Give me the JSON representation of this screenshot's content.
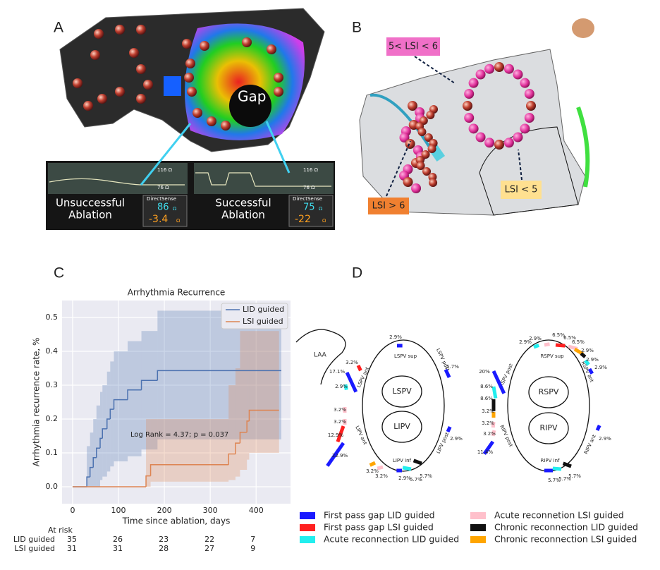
{
  "panel_labels": [
    "A",
    "B",
    "C",
    "D"
  ],
  "panel_a": {
    "gap": "Gap",
    "scale_top": "116 Ω",
    "scale_bottom": "76 Ω",
    "cases": [
      {
        "lines": [
          "Unsuccessful",
          "Ablation"
        ],
        "box_title": "DirectSense",
        "impedance": "86",
        "drop": "-3.4",
        "unit": "Ω"
      },
      {
        "lines": [
          "Successful",
          "Ablation"
        ],
        "box_title": "DirectSense",
        "impedance": "75",
        "drop": "-22",
        "unit": "Ω"
      }
    ]
  },
  "panel_b": {
    "mid": "5< LSI < 6",
    "high": "LSI > 6",
    "low": "LSI < 5"
  },
  "chart_data": {
    "type": "step",
    "title": "Arrhythmia Recurrence",
    "xlabel": "Time since ablation, days",
    "ylabel": "Arrhythmia recurrence rate, %",
    "annotation": "Log Rank = 4.37; p = 0.037",
    "xlim": [
      -23,
      475
    ],
    "ylim": [
      -0.05,
      0.55
    ],
    "xticks": [
      0,
      100,
      200,
      300,
      400
    ],
    "yticks": [
      {
        "value": 0,
        "label": "0.0"
      },
      0.1,
      0.2,
      0.3,
      0.4,
      0.5
    ],
    "grid": true,
    "legend": "upper right",
    "series": [
      {
        "name": "LID guided",
        "color": "#4c72b0",
        "x": [
          0,
          31,
          38,
          45,
          52,
          60,
          65,
          75,
          82,
          90,
          120,
          150,
          185,
          455
        ],
        "values": [
          0,
          0.029,
          0.057,
          0.086,
          0.114,
          0.143,
          0.171,
          0.2,
          0.229,
          0.257,
          0.286,
          0.314,
          0.343,
          0.343
        ],
        "upper": [
          0,
          0.12,
          0.16,
          0.2,
          0.24,
          0.28,
          0.3,
          0.34,
          0.37,
          0.4,
          0.43,
          0.46,
          0.52,
          0.52
        ],
        "lower": [
          0,
          0,
          0,
          0,
          0,
          0.02,
          0.03,
          0.045,
          0.06,
          0.075,
          0.09,
          0.11,
          0.14,
          0.14
        ]
      },
      {
        "name": "LSI guided",
        "color": "#dd8452",
        "x": [
          0,
          160,
          170,
          340,
          355,
          365,
          380,
          385,
          450
        ],
        "values": [
          0,
          0.032,
          0.065,
          0.097,
          0.129,
          0.161,
          0.194,
          0.226,
          0.226
        ],
        "upper": [
          0,
          0.2,
          0.2,
          0.3,
          0.35,
          0.46,
          0.46,
          0.46,
          0.46
        ],
        "lower": [
          0,
          0,
          0.015,
          0.02,
          0.03,
          0.05,
          0.08,
          0.1,
          0.1
        ]
      }
    ]
  },
  "at_risk": {
    "title": "At risk",
    "rows": [
      {
        "name": "LID guided",
        "values": [
          35,
          26,
          23,
          22,
          7
        ]
      },
      {
        "name": "LSI guided",
        "values": [
          31,
          31,
          28,
          27,
          9
        ]
      }
    ]
  },
  "panel_d": {
    "laa": "LAA",
    "veins": [
      "LSPV",
      "LIPV",
      "RSPV",
      "RIPV"
    ],
    "segments": [
      "LSPV sup",
      "LSPV post",
      "LIPV post",
      "LIPV inf",
      "LIPV ant",
      "LSPV ant",
      "RSPV sup",
      "RSPV ant",
      "RIPV ant",
      "RIPV inf",
      "RIPV post",
      "RSPV post"
    ],
    "bars": [
      {
        "value": 2.9,
        "label": "2.9%",
        "color": "#1a1aff"
      },
      {
        "value": 5.7,
        "label": "5.7%",
        "color": "#1a1aff"
      },
      {
        "value": 2.9,
        "label": "2.9%",
        "color": "#1a1aff"
      },
      {
        "value": 3.2,
        "label": "3.2%",
        "color": "#ff2020"
      },
      {
        "value": 17.1,
        "label": "17.1%",
        "color": "#1a1aff"
      },
      {
        "value": 2.9,
        "label": "2.9%",
        "color": "#22eeee"
      },
      {
        "value": 3.2,
        "label": "3.2%",
        "color": "#ffc0cb"
      },
      {
        "value": 3.2,
        "label": "3.2%",
        "color": "#ffc0cb"
      },
      {
        "value": 12.9,
        "label": "12.9%",
        "color": "#ff2020"
      },
      {
        "value": 22.9,
        "label": "22.9%",
        "color": "#1a1aff"
      },
      {
        "value": 3.2,
        "label": "3.2%",
        "color": "#ffa500"
      },
      {
        "value": 3.2,
        "label": "3.2%",
        "color": "#ffc0cb"
      },
      {
        "value": 2.9,
        "label": "2.9%",
        "color": "#1a1aff"
      },
      {
        "value": 5.7,
        "label": "5.7%",
        "color": "#22eeee"
      },
      {
        "value": 5.7,
        "label": "5.7%",
        "color": "#111111"
      },
      {
        "value": 2.9,
        "label": "2.9%",
        "color": "#22eeee"
      },
      {
        "value": 2.9,
        "label": "2.9%",
        "color": "#ffc0cb"
      },
      {
        "value": 6.5,
        "label": "6.5%",
        "color": "#ff2020"
      },
      {
        "value": 6.5,
        "label": "6.5%",
        "color": "#ffc0cb"
      },
      {
        "value": 6.5,
        "label": "6.5%",
        "color": "#ffa500"
      },
      {
        "value": 2.9,
        "label": "2.9%",
        "color": "#111111"
      },
      {
        "value": 2.9,
        "label": "2.9%",
        "color": "#22eeee"
      },
      {
        "value": 2.9,
        "label": "2.9%",
        "color": "#1a1aff"
      },
      {
        "value": 20,
        "label": "20%",
        "color": "#1a1aff"
      },
      {
        "value": 8.6,
        "label": "8.6%",
        "color": "#22eeee"
      },
      {
        "value": 8.6,
        "label": "8.6%",
        "color": "#111111"
      },
      {
        "value": 3.2,
        "label": "3.2%",
        "color": "#ffa500"
      },
      {
        "value": 3.2,
        "label": "3.2%",
        "color": "#ffc0cb"
      },
      {
        "value": 3.2,
        "label": "3.2%",
        "color": "#ffc0cb"
      },
      {
        "value": 11.4,
        "label": "11.4%",
        "color": "#1a1aff"
      },
      {
        "value": 2.9,
        "label": "2.9%",
        "color": "#1a1aff"
      },
      {
        "value": 5.7,
        "label": "5.7%",
        "color": "#1a1aff"
      },
      {
        "value": 5.7,
        "label": "5.7%",
        "color": "#22eeee"
      },
      {
        "value": 5.7,
        "label": "5.7%",
        "color": "#111111"
      }
    ],
    "legend": [
      {
        "name": "First pass gap LID guided",
        "color": "#1a1aff"
      },
      {
        "name": "First pass gap LSI guided",
        "color": "#ff2020"
      },
      {
        "name": "Acute reconnection LID guided",
        "color": "#22eeee"
      },
      {
        "name": "Acute reconnetion LSI guided",
        "color": "#ffc0cb"
      },
      {
        "name": "Chronic reconnection LID guided",
        "color": "#111111"
      },
      {
        "name": "Chronic reconnection LSI guided",
        "color": "#ffa500"
      }
    ]
  }
}
